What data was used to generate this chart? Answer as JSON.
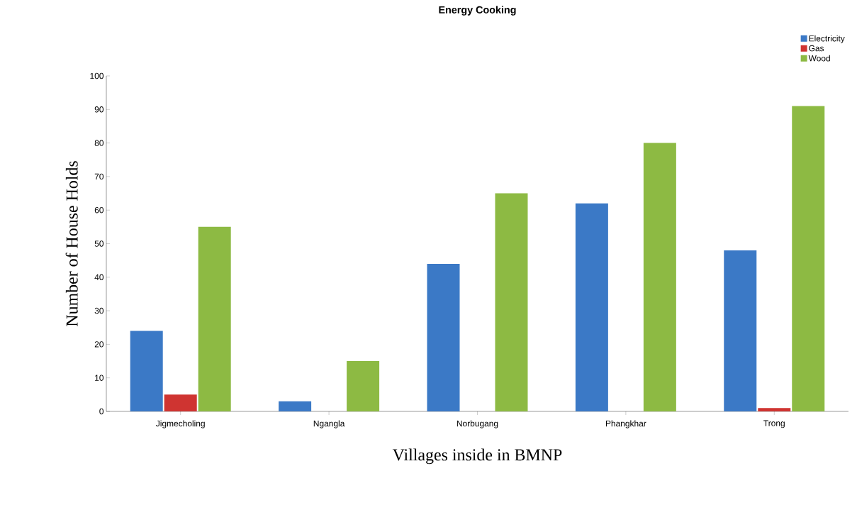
{
  "chart_data": {
    "type": "bar",
    "title": "Energy Cooking",
    "xlabel": "Villages inside in BMNP",
    "ylabel": "Number of House Holds",
    "categories": [
      "Jigmecholing",
      "Ngangla",
      "Norbugang",
      "Phangkhar",
      "Trong"
    ],
    "series": [
      {
        "name": "Electricity",
        "color": "#3b79c6",
        "values": [
          24,
          3,
          44,
          62,
          48
        ]
      },
      {
        "name": "Gas",
        "color": "#cf3431",
        "values": [
          5,
          null,
          null,
          null,
          1
        ]
      },
      {
        "name": "Wood",
        "color": "#8dba43",
        "values": [
          55,
          15,
          65,
          80,
          91
        ]
      }
    ],
    "ylim": [
      0,
      100
    ],
    "yticks": [
      0,
      10,
      20,
      30,
      40,
      50,
      60,
      70,
      80,
      90,
      100
    ],
    "grid": false,
    "legend": "top right"
  }
}
